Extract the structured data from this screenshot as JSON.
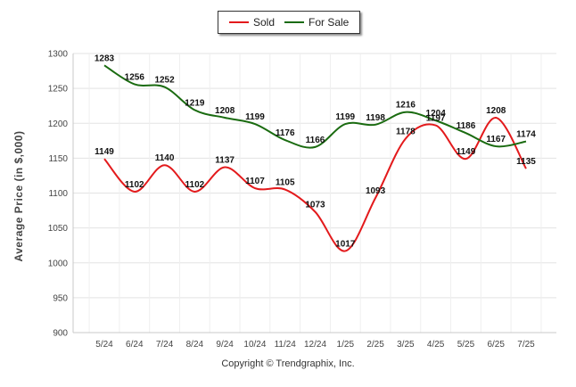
{
  "chart_data": {
    "type": "line",
    "categories": [
      "5/24",
      "6/24",
      "7/24",
      "8/24",
      "9/24",
      "10/24",
      "11/24",
      "12/24",
      "1/25",
      "2/25",
      "3/25",
      "4/25",
      "5/25",
      "6/25",
      "7/25"
    ],
    "series": [
      {
        "name": "Sold",
        "color": "#e31a1c",
        "values": [
          1149,
          1102,
          1140,
          1102,
          1137,
          1107,
          1105,
          1073,
          1017,
          1093,
          1178,
          1197,
          1149,
          1208,
          1135
        ]
      },
      {
        "name": "For Sale",
        "color": "#1a6b10",
        "values": [
          1283,
          1256,
          1252,
          1219,
          1208,
          1199,
          1176,
          1166,
          1199,
          1198,
          1216,
          1204,
          1186,
          1167,
          1174
        ]
      }
    ],
    "ylabel": "Average Price (in $,000)",
    "ylim": [
      900,
      1300
    ],
    "yticks": [
      900,
      950,
      1000,
      1050,
      1100,
      1150,
      1200,
      1250,
      1300
    ],
    "grid": true,
    "legend_position": "top-center"
  },
  "footer": {
    "copyright": "Copyright © Trendgraphix, Inc."
  }
}
